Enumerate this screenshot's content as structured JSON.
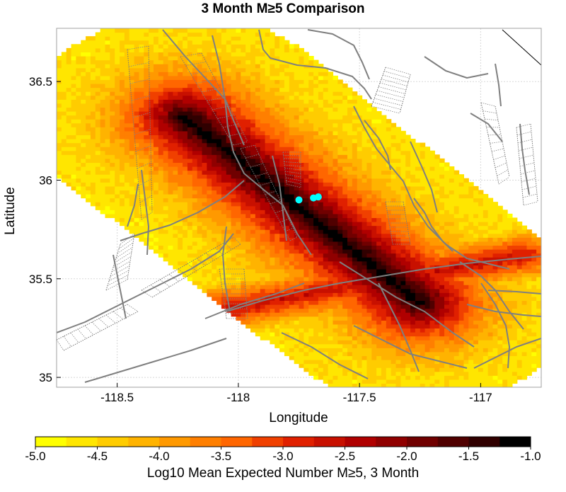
{
  "chart_data": {
    "type": "heatmap",
    "title": "3 Month M≥5 Comparison",
    "xlabel": "Longitude",
    "ylabel": "Latitude",
    "xlim": [
      -118.75,
      -116.75
    ],
    "ylim": [
      34.95,
      36.77
    ],
    "xticks": [
      -118.5,
      -118,
      -117.5,
      -117
    ],
    "xtick_labels": [
      "-118.5",
      "-118",
      "-117.5",
      "-117"
    ],
    "yticks": [
      35,
      35.5,
      36,
      36.5
    ],
    "ytick_labels": [
      "35",
      "35.5",
      "36",
      "36.5"
    ],
    "grid": true,
    "colorbar": {
      "label": "Log10 Mean Expected Number M≥5, 3 Month",
      "min": -5.0,
      "max": -1.0,
      "ticks": [
        -5.0,
        -4.5,
        -4.0,
        -3.5,
        -3.0,
        -2.5,
        -2.0,
        -1.5,
        -1.0
      ],
      "tick_labels": [
        "-5.0",
        "-4.5",
        "-4.0",
        "-3.5",
        "-3.0",
        "-2.5",
        "-2.0",
        "-1.5",
        "-1.0"
      ],
      "colors": [
        "#ffff00",
        "#ffe600",
        "#ffcc00",
        "#ffb300",
        "#ff9900",
        "#ff7f00",
        "#ff6600",
        "#f04000",
        "#e02000",
        "#c81000",
        "#b00000",
        "#900000",
        "#700000",
        "#500000",
        "#300000",
        "#000000"
      ]
    },
    "forecast_region": {
      "axis_start": [
        -118.22,
        36.32
      ],
      "axis_end": [
        -117.25,
        35.38
      ],
      "halfwidth_deg": 0.52,
      "peak_log10": -1.0,
      "edge_log10": -4.6
    },
    "secondary_zone": {
      "start": [
        -118.05,
        35.35
      ],
      "end": [
        -116.82,
        35.62
      ],
      "peak_log10": -2.6
    },
    "observed_events": [
      {
        "lon": -117.75,
        "lat": 35.9
      },
      {
        "lon": -117.69,
        "lat": 35.91
      },
      {
        "lon": -117.67,
        "lat": 35.915
      }
    ],
    "colors": {
      "faults": "#7f7f7f",
      "events": "#00ffff",
      "grid": "#d8d8d8"
    }
  }
}
